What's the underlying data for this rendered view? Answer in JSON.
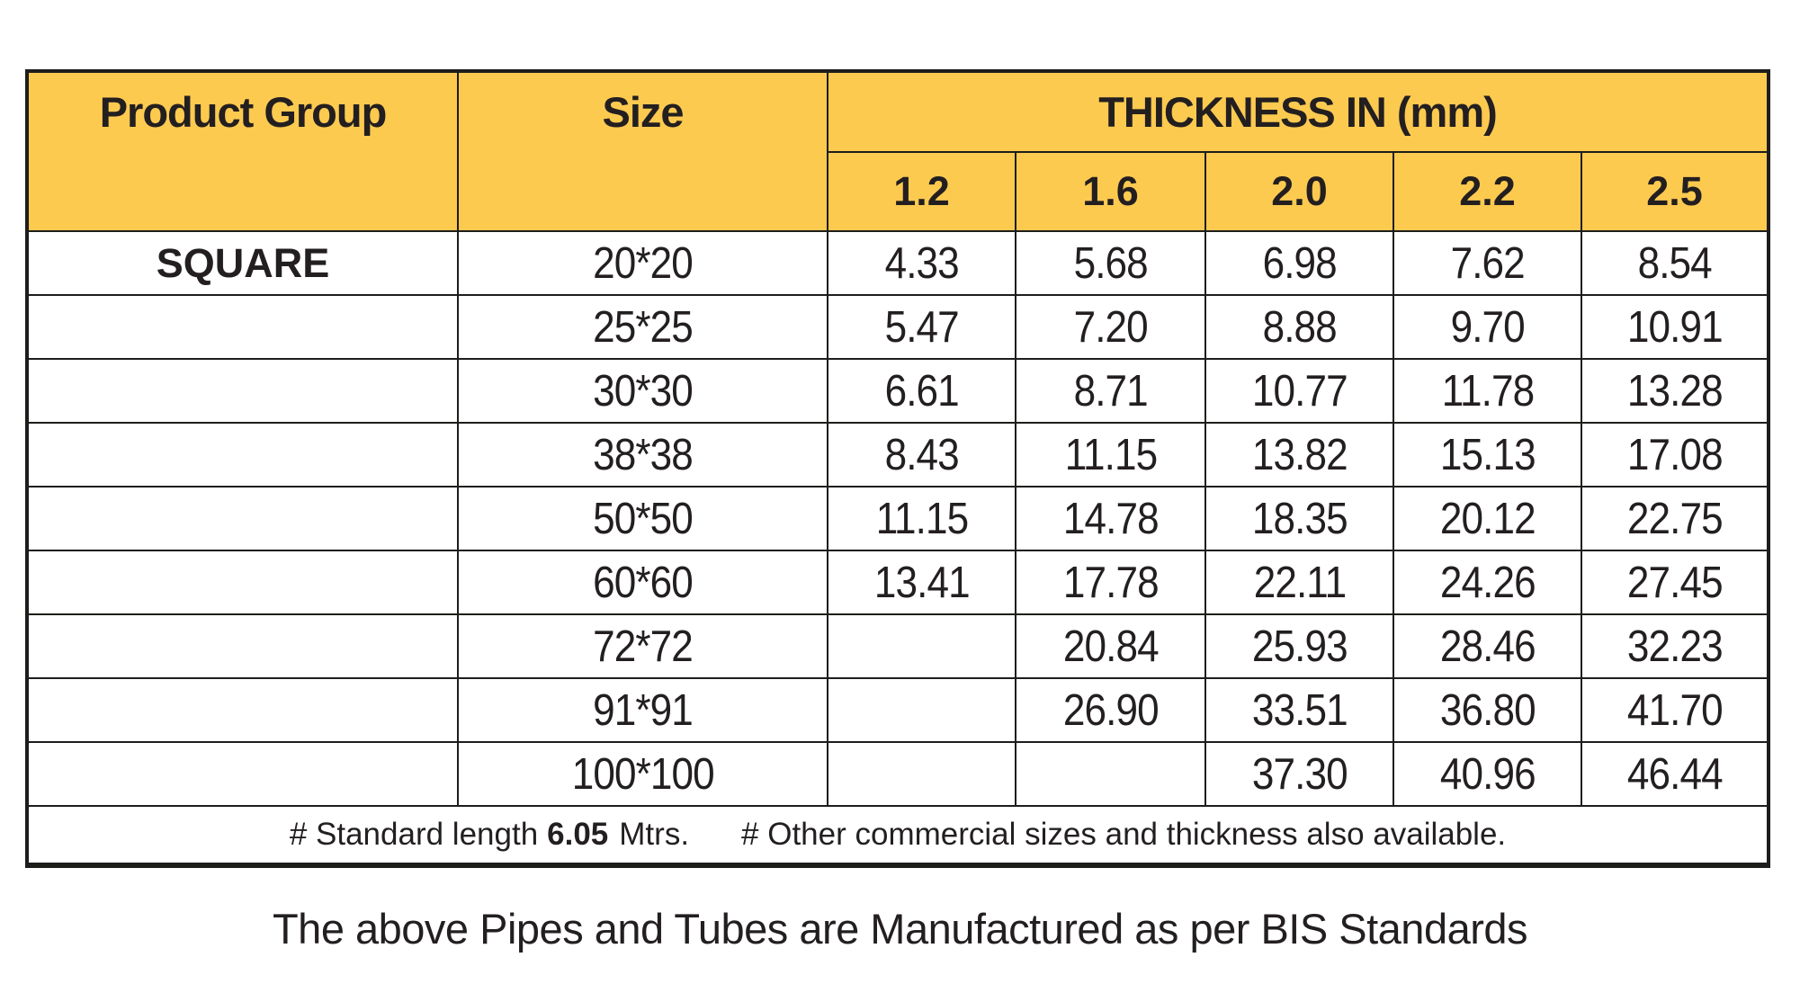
{
  "colors": {
    "header_bg": "#FDCA50",
    "border": "#1D1D1B",
    "text": "#231F20"
  },
  "table": {
    "columns": {
      "product_group": "Product Group",
      "size": "Size"
    },
    "thickness_header": "THICKNESS IN (mm)",
    "thickness_values": [
      "1.2",
      "1.6",
      "2.0",
      "2.2",
      "2.5"
    ],
    "product_group_value": "SQUARE",
    "rows": [
      {
        "size": "20*20",
        "values": [
          "4.33",
          "5.68",
          "6.98",
          "7.62",
          "8.54"
        ]
      },
      {
        "size": "25*25",
        "values": [
          "5.47",
          "7.20",
          "8.88",
          "9.70",
          "10.91"
        ]
      },
      {
        "size": "30*30",
        "values": [
          "6.61",
          "8.71",
          "10.77",
          "11.78",
          "13.28"
        ]
      },
      {
        "size": "38*38",
        "values": [
          "8.43",
          "11.15",
          "13.82",
          "15.13",
          "17.08"
        ]
      },
      {
        "size": "50*50",
        "values": [
          "11.15",
          "14.78",
          "18.35",
          "20.12",
          "22.75"
        ]
      },
      {
        "size": "60*60",
        "values": [
          "13.41",
          "17.78",
          "22.11",
          "24.26",
          "27.45"
        ]
      },
      {
        "size": "72*72",
        "values": [
          "",
          "20.84",
          "25.93",
          "28.46",
          "32.23"
        ]
      },
      {
        "size": "91*91",
        "values": [
          "",
          "26.90",
          "33.51",
          "36.80",
          "41.70"
        ]
      },
      {
        "size": "100*100",
        "values": [
          "",
          "",
          "37.30",
          "40.96",
          "46.44"
        ]
      }
    ],
    "footnote": {
      "prefix": "# Standard length",
      "length_value": "6.05",
      "unit": "Mtrs.",
      "other": "# Other commercial sizes and thickness also available."
    }
  },
  "caption": "The above Pipes and Tubes are Manufactured as per BIS Standards"
}
